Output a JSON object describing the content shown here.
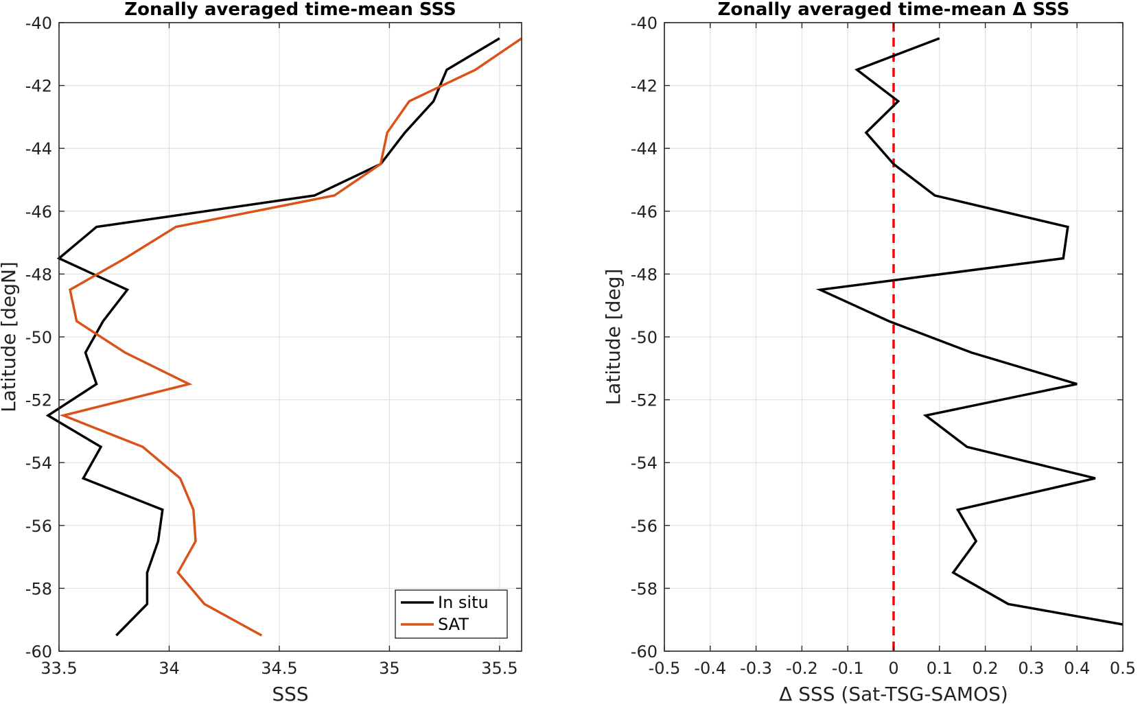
{
  "chart_data": [
    {
      "type": "line",
      "title": "Zonally averaged time-mean SSS",
      "xlabel": "SSS",
      "ylabel": "Latitude [degN]",
      "xlim": [
        33.5,
        35.6
      ],
      "ylim": [
        -60,
        -40
      ],
      "xticks": [
        33.5,
        34,
        34.5,
        35,
        35.5
      ],
      "xtick_labels": [
        "33.5",
        "34",
        "34.5",
        "35",
        "35.5"
      ],
      "yticks": [
        -60,
        -58,
        -56,
        -54,
        -52,
        -50,
        -48,
        -46,
        -44,
        -42,
        -40
      ],
      "ytick_labels": [
        "-60",
        "-58",
        "-56",
        "-54",
        "-52",
        "-50",
        "-48",
        "-46",
        "-44",
        "-42",
        "-40"
      ],
      "grid": true,
      "legend_position": "bottom-right",
      "series": [
        {
          "name": "In situ",
          "color": "#000000",
          "points": [
            [
              35.5,
              -40.5
            ],
            [
              35.26,
              -41.5
            ],
            [
              35.2,
              -42.5
            ],
            [
              35.07,
              -43.5
            ],
            [
              34.96,
              -44.5
            ],
            [
              34.66,
              -45.5
            ],
            [
              33.67,
              -46.5
            ],
            [
              33.5,
              -47.5
            ],
            [
              33.81,
              -48.5
            ],
            [
              33.7,
              -49.5
            ],
            [
              33.62,
              -50.5
            ],
            [
              33.67,
              -51.5
            ],
            [
              33.45,
              -52.5
            ],
            [
              33.69,
              -53.5
            ],
            [
              33.61,
              -54.5
            ],
            [
              33.97,
              -55.5
            ],
            [
              33.95,
              -56.5
            ],
            [
              33.9,
              -57.5
            ],
            [
              33.9,
              -58.5
            ],
            [
              33.76,
              -59.5
            ]
          ]
        },
        {
          "name": "SAT",
          "color": "#D95319",
          "points": [
            [
              35.6,
              -40.5
            ],
            [
              35.39,
              -41.5
            ],
            [
              35.09,
              -42.5
            ],
            [
              34.99,
              -43.5
            ],
            [
              34.96,
              -44.5
            ],
            [
              34.75,
              -45.5
            ],
            [
              34.03,
              -46.5
            ],
            [
              33.8,
              -47.5
            ],
            [
              33.55,
              -48.5
            ],
            [
              33.58,
              -49.5
            ],
            [
              33.8,
              -50.5
            ],
            [
              34.09,
              -51.5
            ],
            [
              33.52,
              -52.5
            ],
            [
              33.88,
              -53.5
            ],
            [
              34.05,
              -54.5
            ],
            [
              34.11,
              -55.5
            ],
            [
              34.12,
              -56.5
            ],
            [
              34.04,
              -57.5
            ],
            [
              34.16,
              -58.5
            ],
            [
              34.42,
              -59.5
            ]
          ]
        }
      ]
    },
    {
      "type": "line",
      "title": "Zonally averaged time-mean Δ SSS",
      "xlabel": "Δ SSS (Sat-TSG-SAMOS)",
      "ylabel": "Latitude [deg]",
      "xlim": [
        -0.5,
        0.5
      ],
      "ylim": [
        -60,
        -40
      ],
      "xticks": [
        -0.5,
        -0.4,
        -0.3,
        -0.2,
        -0.1,
        0,
        0.1,
        0.2,
        0.3,
        0.4,
        0.5
      ],
      "xtick_labels": [
        "-0.5",
        "-0.4",
        "-0.3",
        "-0.2",
        "-0.1",
        "0",
        "0.1",
        "0.2",
        "0.3",
        "0.4",
        "0.5"
      ],
      "yticks": [
        -60,
        -58,
        -56,
        -54,
        -52,
        -50,
        -48,
        -46,
        -44,
        -42,
        -40
      ],
      "ytick_labels": [
        "-60",
        "-58",
        "-56",
        "-54",
        "-52",
        "-50",
        "-48",
        "-46",
        "-44",
        "-42",
        "-40"
      ],
      "grid": true,
      "zero_line": {
        "x": 0,
        "color": "#FF0000",
        "style": "dashed"
      },
      "series": [
        {
          "color": "#000000",
          "points": [
            [
              0.1,
              -40.5
            ],
            [
              -0.08,
              -41.5
            ],
            [
              0.01,
              -42.5
            ],
            [
              -0.06,
              -43.5
            ],
            [
              0.0,
              -44.5
            ],
            [
              0.09,
              -45.5
            ],
            [
              0.38,
              -46.5
            ],
            [
              0.37,
              -47.5
            ],
            [
              -0.16,
              -48.5
            ],
            [
              -0.01,
              -49.5
            ],
            [
              0.17,
              -50.5
            ],
            [
              0.4,
              -51.5
            ],
            [
              0.07,
              -52.5
            ],
            [
              0.16,
              -53.5
            ],
            [
              0.44,
              -54.5
            ],
            [
              0.14,
              -55.5
            ],
            [
              0.18,
              -56.5
            ],
            [
              0.13,
              -57.5
            ],
            [
              0.25,
              -58.5
            ],
            [
              0.5,
              -59.15
            ]
          ]
        }
      ]
    }
  ]
}
